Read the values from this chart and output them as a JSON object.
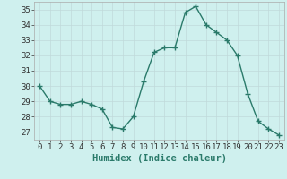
{
  "x": [
    0,
    1,
    2,
    3,
    4,
    5,
    6,
    7,
    8,
    9,
    10,
    11,
    12,
    13,
    14,
    15,
    16,
    17,
    18,
    19,
    20,
    21,
    22,
    23
  ],
  "y": [
    30,
    29,
    28.8,
    28.8,
    29,
    28.8,
    28.5,
    27.3,
    27.2,
    28.0,
    30.3,
    32.2,
    32.5,
    32.5,
    34.8,
    35.2,
    34.0,
    33.5,
    33.0,
    32.0,
    29.5,
    27.7,
    27.2,
    26.8
  ],
  "xlabel": "Humidex (Indice chaleur)",
  "xlim": [
    -0.5,
    23.5
  ],
  "ylim": [
    26.5,
    35.5
  ],
  "yticks": [
    27,
    28,
    29,
    30,
    31,
    32,
    33,
    34,
    35
  ],
  "xticks": [
    0,
    1,
    2,
    3,
    4,
    5,
    6,
    7,
    8,
    9,
    10,
    11,
    12,
    13,
    14,
    15,
    16,
    17,
    18,
    19,
    20,
    21,
    22,
    23
  ],
  "line_color": "#2a7a6a",
  "marker": "+",
  "marker_size": 4,
  "line_width": 1.0,
  "bg_color": "#cff0ee",
  "grid_color": "#c0dada",
  "xlabel_fontsize": 7.5,
  "tick_fontsize": 6.5
}
